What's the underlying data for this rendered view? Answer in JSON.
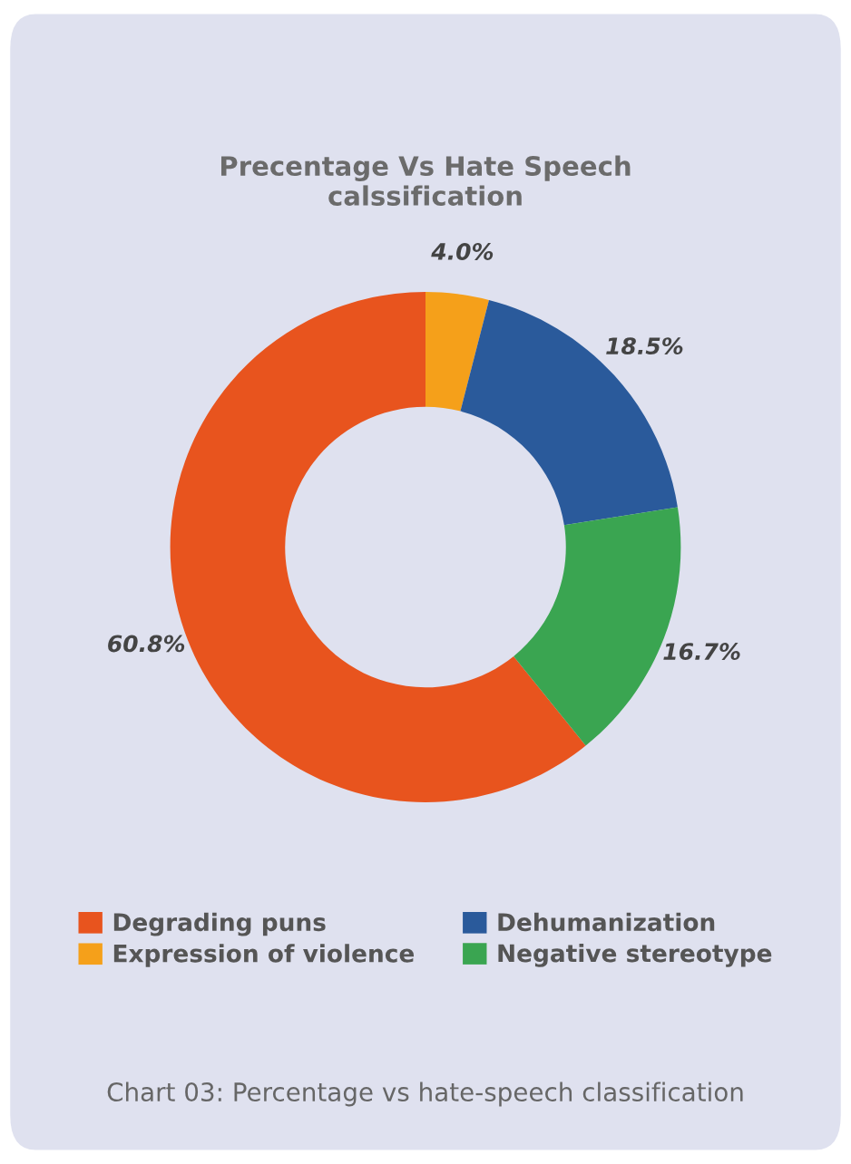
{
  "chart_data": {
    "type": "donut",
    "title": "Precentage Vs Hate Speech\ncalssification",
    "categories": [
      "Degrading puns",
      "Expression of violence",
      "Dehumanization",
      "Negative stereotype"
    ],
    "values": [
      60.8,
      4.0,
      18.5,
      16.7
    ],
    "colors": [
      "#e8541e",
      "#f5a01a",
      "#2a5a9b",
      "#3aa551"
    ],
    "value_labels": [
      "60.8%",
      "4.0%",
      "18.5%",
      "16.7%"
    ],
    "legend": "bottom",
    "annotations": [
      "Chart 03: Percentage vs hate-speech classification"
    ]
  }
}
